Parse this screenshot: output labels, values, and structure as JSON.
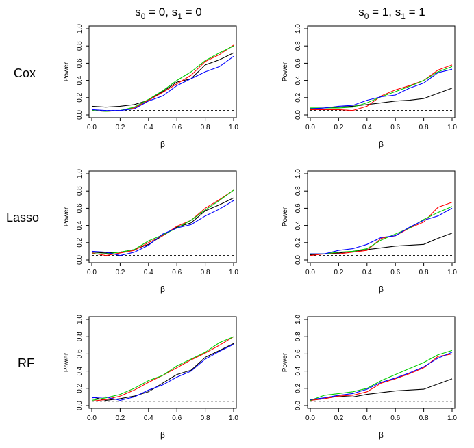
{
  "colors": {
    "black": "#000000",
    "red": "#ff0000",
    "green": "#00cd00",
    "blue": "#0000ff"
  },
  "column_headers": [
    {
      "base1": "s",
      "sub1": "0",
      "mid": " = 0, ",
      "base2": "s",
      "sub2": "1",
      "tail": " = 0"
    },
    {
      "base1": "s",
      "sub1": "0",
      "mid": " = 1, ",
      "base2": "s",
      "sub2": "1",
      "tail": " = 1"
    }
  ],
  "row_labels": [
    "Cox",
    "Lasso",
    "RF"
  ],
  "chart_data": [
    {
      "type": "line",
      "row": "Cox",
      "col": 0,
      "xlabel": "β",
      "ylabel": "Power",
      "xlim": [
        0,
        1
      ],
      "ylim": [
        0,
        1
      ],
      "hline": 0.05,
      "xticks": [
        "0.0",
        "0.2",
        "0.4",
        "0.6",
        "0.8",
        "1.0"
      ],
      "yticks": [
        "0.0",
        "0.2",
        "0.4",
        "0.6",
        "0.8",
        "1.0"
      ],
      "x": [
        0,
        0.1,
        0.2,
        0.3,
        0.4,
        0.5,
        0.6,
        0.7,
        0.8,
        0.9,
        1.0
      ],
      "series": [
        {
          "color": "#000000",
          "values": [
            0.1,
            0.09,
            0.1,
            0.12,
            0.17,
            0.27,
            0.38,
            0.42,
            0.58,
            0.64,
            0.72
          ]
        },
        {
          "color": "#ff0000",
          "values": [
            0.05,
            0.04,
            0.05,
            0.08,
            0.17,
            0.26,
            0.36,
            0.46,
            0.62,
            0.7,
            0.81
          ]
        },
        {
          "color": "#00cd00",
          "values": [
            0.05,
            0.04,
            0.05,
            0.09,
            0.18,
            0.28,
            0.4,
            0.5,
            0.63,
            0.72,
            0.8
          ]
        },
        {
          "color": "#0000ff",
          "values": [
            0.06,
            0.05,
            0.05,
            0.07,
            0.16,
            0.22,
            0.34,
            0.42,
            0.5,
            0.56,
            0.68
          ]
        }
      ]
    },
    {
      "type": "line",
      "row": "Cox",
      "col": 1,
      "xlabel": "β",
      "ylabel": "Power",
      "xlim": [
        0,
        1
      ],
      "ylim": [
        0,
        1
      ],
      "hline": 0.05,
      "xticks": [
        "0.0",
        "0.2",
        "0.4",
        "0.6",
        "0.8",
        "1.0"
      ],
      "yticks": [
        "0.0",
        "0.2",
        "0.4",
        "0.6",
        "0.8",
        "1.0"
      ],
      "x": [
        0,
        0.1,
        0.2,
        0.3,
        0.4,
        0.5,
        0.6,
        0.7,
        0.8,
        0.9,
        1.0
      ],
      "series": [
        {
          "color": "#000000",
          "values": [
            0.07,
            0.08,
            0.09,
            0.1,
            0.12,
            0.14,
            0.16,
            0.17,
            0.19,
            0.25,
            0.31
          ]
        },
        {
          "color": "#ff0000",
          "values": [
            0.06,
            0.06,
            0.06,
            0.05,
            0.1,
            0.22,
            0.29,
            0.34,
            0.4,
            0.52,
            0.58
          ]
        },
        {
          "color": "#00cd00",
          "values": [
            0.08,
            0.08,
            0.08,
            0.09,
            0.14,
            0.21,
            0.27,
            0.33,
            0.4,
            0.5,
            0.56
          ]
        },
        {
          "color": "#0000ff",
          "values": [
            0.07,
            0.08,
            0.1,
            0.11,
            0.17,
            0.21,
            0.23,
            0.31,
            0.37,
            0.49,
            0.53
          ]
        }
      ]
    },
    {
      "type": "line",
      "row": "Lasso",
      "col": 0,
      "xlabel": "β",
      "ylabel": "Power",
      "xlim": [
        0,
        1
      ],
      "ylim": [
        0,
        1
      ],
      "hline": 0.05,
      "xticks": [
        "0.0",
        "0.2",
        "0.4",
        "0.6",
        "0.8",
        "1.0"
      ],
      "yticks": [
        "0.0",
        "0.2",
        "0.4",
        "0.6",
        "0.8",
        "1.0"
      ],
      "x": [
        0,
        0.1,
        0.2,
        0.3,
        0.4,
        0.5,
        0.6,
        0.7,
        0.8,
        0.9,
        1.0
      ],
      "series": [
        {
          "color": "#000000",
          "values": [
            0.09,
            0.08,
            0.09,
            0.12,
            0.18,
            0.28,
            0.38,
            0.43,
            0.57,
            0.64,
            0.72
          ]
        },
        {
          "color": "#ff0000",
          "values": [
            0.08,
            0.05,
            0.08,
            0.11,
            0.2,
            0.28,
            0.39,
            0.46,
            0.6,
            0.7,
            0.81
          ]
        },
        {
          "color": "#00cd00",
          "values": [
            0.07,
            0.07,
            0.09,
            0.12,
            0.22,
            0.29,
            0.37,
            0.46,
            0.58,
            0.69,
            0.81
          ]
        },
        {
          "color": "#0000ff",
          "values": [
            0.1,
            0.09,
            0.05,
            0.09,
            0.17,
            0.3,
            0.37,
            0.41,
            0.51,
            0.59,
            0.69
          ]
        }
      ]
    },
    {
      "type": "line",
      "row": "Lasso",
      "col": 1,
      "xlabel": "β",
      "ylabel": "Power",
      "xlim": [
        0,
        1
      ],
      "ylim": [
        0,
        1
      ],
      "hline": 0.05,
      "xticks": [
        "0.0",
        "0.2",
        "0.4",
        "0.6",
        "0.8",
        "1.0"
      ],
      "yticks": [
        "0.0",
        "0.2",
        "0.4",
        "0.6",
        "0.8",
        "1.0"
      ],
      "x": [
        0,
        0.1,
        0.2,
        0.3,
        0.4,
        0.5,
        0.6,
        0.7,
        0.8,
        0.9,
        1.0
      ],
      "series": [
        {
          "color": "#000000",
          "values": [
            0.06,
            0.07,
            0.08,
            0.1,
            0.12,
            0.14,
            0.16,
            0.17,
            0.18,
            0.25,
            0.31
          ]
        },
        {
          "color": "#ff0000",
          "values": [
            0.05,
            0.07,
            0.07,
            0.09,
            0.11,
            0.25,
            0.28,
            0.37,
            0.44,
            0.61,
            0.67
          ]
        },
        {
          "color": "#00cd00",
          "values": [
            0.07,
            0.07,
            0.09,
            0.1,
            0.13,
            0.23,
            0.3,
            0.37,
            0.47,
            0.55,
            0.62
          ]
        },
        {
          "color": "#0000ff",
          "values": [
            0.07,
            0.07,
            0.11,
            0.13,
            0.18,
            0.26,
            0.28,
            0.38,
            0.46,
            0.51,
            0.6
          ]
        }
      ]
    },
    {
      "type": "line",
      "row": "RF",
      "col": 0,
      "xlabel": "β",
      "ylabel": "Power",
      "xlim": [
        0,
        1
      ],
      "ylim": [
        0,
        1
      ],
      "hline": 0.05,
      "xticks": [
        "0.0",
        "0.2",
        "0.4",
        "0.6",
        "0.8",
        "1.0"
      ],
      "yticks": [
        "0.0",
        "0.2",
        "0.4",
        "0.6",
        "0.8",
        "1.0"
      ],
      "x": [
        0,
        0.1,
        0.2,
        0.3,
        0.4,
        0.5,
        0.6,
        0.7,
        0.8,
        0.9,
        1.0
      ],
      "series": [
        {
          "color": "#000000",
          "values": [
            0.1,
            0.06,
            0.08,
            0.11,
            0.16,
            0.26,
            0.36,
            0.41,
            0.56,
            0.64,
            0.72
          ]
        },
        {
          "color": "#ff0000",
          "values": [
            0.05,
            0.07,
            0.11,
            0.18,
            0.27,
            0.35,
            0.44,
            0.53,
            0.61,
            0.7,
            0.8
          ]
        },
        {
          "color": "#00cd00",
          "values": [
            0.06,
            0.09,
            0.13,
            0.2,
            0.29,
            0.35,
            0.46,
            0.54,
            0.62,
            0.73,
            0.8
          ]
        },
        {
          "color": "#0000ff",
          "values": [
            0.09,
            0.1,
            0.06,
            0.1,
            0.18,
            0.24,
            0.33,
            0.4,
            0.54,
            0.63,
            0.71
          ]
        }
      ]
    },
    {
      "type": "line",
      "row": "RF",
      "col": 1,
      "xlabel": "β",
      "ylabel": "Power",
      "xlim": [
        0,
        1
      ],
      "ylim": [
        0,
        1
      ],
      "hline": 0.05,
      "xticks": [
        "0.0",
        "0.2",
        "0.4",
        "0.6",
        "0.8",
        "1.0"
      ],
      "yticks": [
        "0.0",
        "0.2",
        "0.4",
        "0.6",
        "0.8",
        "1.0"
      ],
      "x": [
        0,
        0.1,
        0.2,
        0.3,
        0.4,
        0.5,
        0.6,
        0.7,
        0.8,
        0.9,
        1.0
      ],
      "series": [
        {
          "color": "#000000",
          "values": [
            0.06,
            0.08,
            0.11,
            0.1,
            0.13,
            0.15,
            0.17,
            0.18,
            0.19,
            0.25,
            0.31
          ]
        },
        {
          "color": "#ff0000",
          "values": [
            0.06,
            0.08,
            0.11,
            0.12,
            0.16,
            0.26,
            0.31,
            0.37,
            0.44,
            0.57,
            0.6
          ]
        },
        {
          "color": "#00cd00",
          "values": [
            0.06,
            0.12,
            0.14,
            0.16,
            0.2,
            0.29,
            0.36,
            0.43,
            0.5,
            0.59,
            0.64
          ]
        },
        {
          "color": "#0000ff",
          "values": [
            0.07,
            0.09,
            0.12,
            0.14,
            0.19,
            0.27,
            0.32,
            0.38,
            0.45,
            0.55,
            0.62
          ]
        }
      ]
    }
  ]
}
